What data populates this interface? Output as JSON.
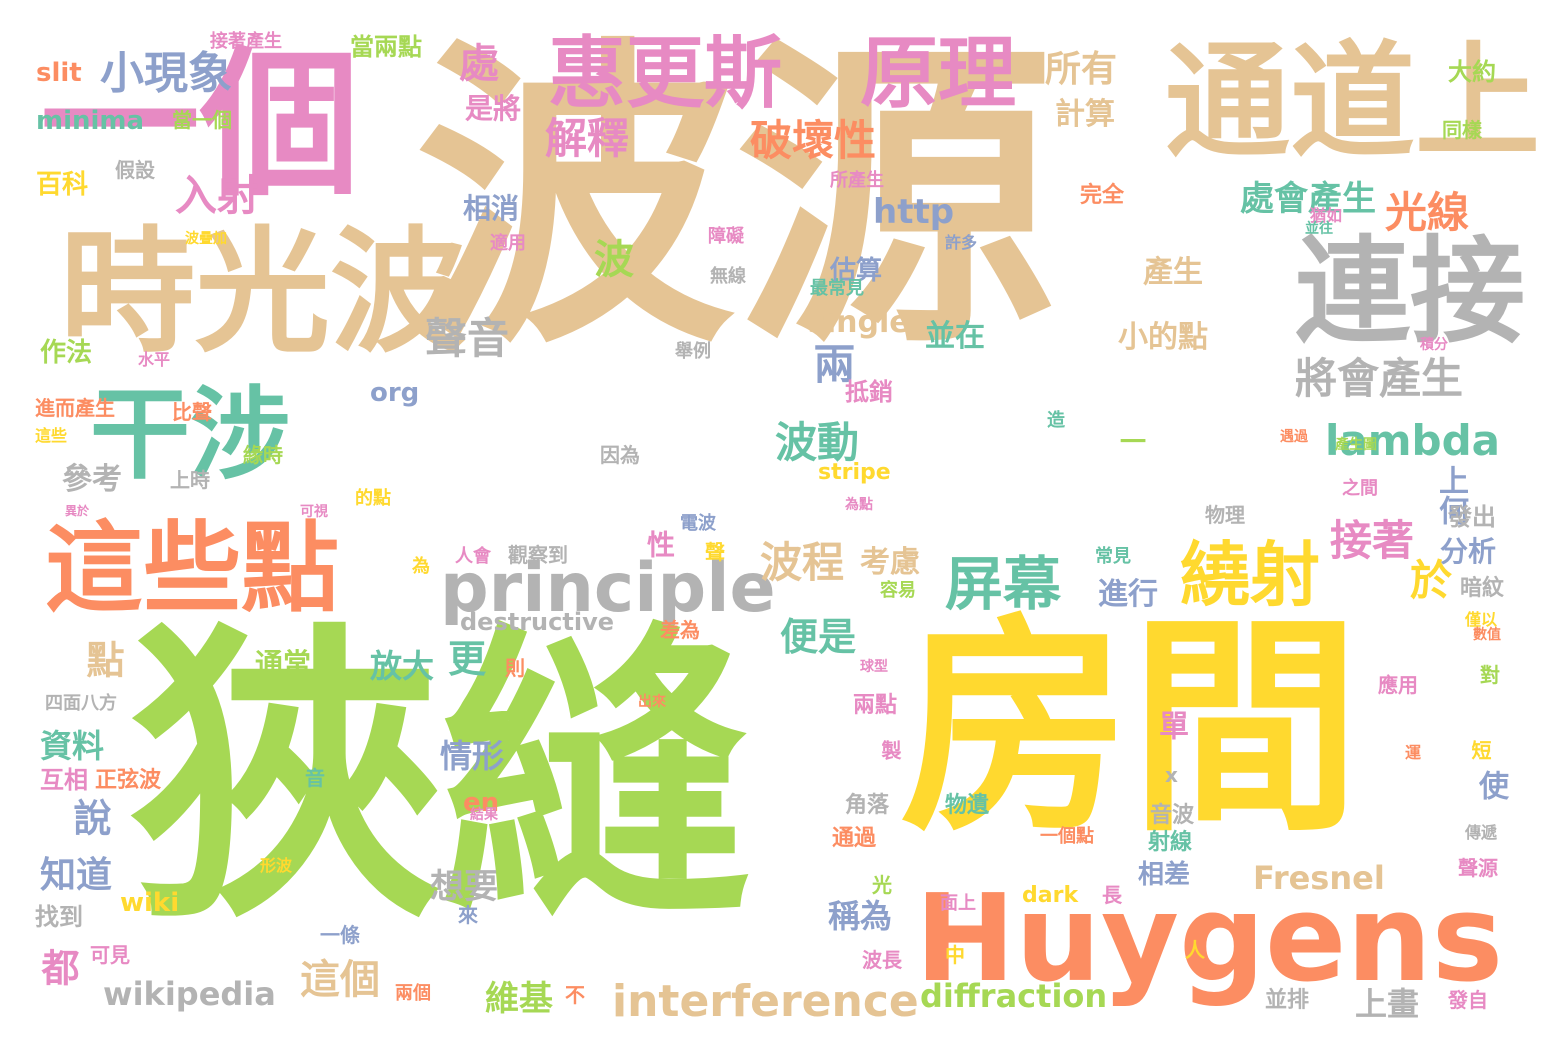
{
  "palette": {
    "tan": "#e5c494",
    "yellow": "#ffd92f",
    "green": "#a6d854",
    "pink": "#e78ac3",
    "orange": "#fc8d62",
    "teal": "#66c2a5",
    "blue": "#8da0cb",
    "gray": "#b3b3b3"
  },
  "words": [
    {
      "text": "波源",
      "color": "#e5c494"
    },
    {
      "text": "狹縫",
      "color": "#a6d854"
    },
    {
      "text": "房間",
      "color": "#ffd92f"
    },
    {
      "text": "一個",
      "color": "#e78ac3"
    },
    {
      "text": "時光波",
      "color": "#e5c494"
    },
    {
      "text": "通道上",
      "color": "#e5c494"
    },
    {
      "text": "連接",
      "color": "#b3b3b3"
    },
    {
      "text": "惠更斯",
      "color": "#e78ac3"
    },
    {
      "text": "原理",
      "color": "#e78ac3"
    },
    {
      "text": "這些點",
      "color": "#fc8d62"
    },
    {
      "text": "干涉",
      "color": "#66c2a5"
    },
    {
      "text": "Huygens",
      "color": "#fc8d62"
    },
    {
      "text": "principle",
      "color": "#b3b3b3"
    },
    {
      "text": "繞射",
      "color": "#ffd92f"
    },
    {
      "text": "屏幕",
      "color": "#66c2a5"
    },
    {
      "text": "interference",
      "color": "#e5c494"
    },
    {
      "text": "小現象",
      "color": "#8da0cb"
    },
    {
      "text": "入射",
      "color": "#e78ac3"
    },
    {
      "text": "破壞性",
      "color": "#fc8d62"
    },
    {
      "text": "解釋",
      "color": "#e78ac3"
    },
    {
      "text": "所有",
      "color": "#e5c494"
    },
    {
      "text": "光線",
      "color": "#fc8d62"
    },
    {
      "text": "將會產生",
      "color": "#b3b3b3"
    },
    {
      "text": "lambda",
      "color": "#66c2a5"
    },
    {
      "text": "聲音",
      "color": "#b3b3b3"
    },
    {
      "text": "波動",
      "color": "#66c2a5"
    },
    {
      "text": "波程",
      "color": "#e5c494"
    },
    {
      "text": "接著",
      "color": "#e78ac3"
    },
    {
      "text": "於",
      "color": "#ffd92f"
    },
    {
      "text": "兩",
      "color": "#8da0cb"
    },
    {
      "text": "波",
      "color": "#a6d854"
    },
    {
      "text": "處",
      "color": "#e78ac3"
    },
    {
      "text": "處會產生",
      "color": "#66c2a5"
    },
    {
      "text": "http",
      "color": "#8da0cb"
    },
    {
      "text": "便是",
      "color": "#66c2a5"
    },
    {
      "text": "更",
      "color": "#66c2a5"
    },
    {
      "text": "點",
      "color": "#e5c494"
    },
    {
      "text": "這個",
      "color": "#e5c494"
    },
    {
      "text": "都",
      "color": "#e78ac3"
    },
    {
      "text": "說",
      "color": "#8da0cb"
    },
    {
      "text": "知道",
      "color": "#8da0cb"
    },
    {
      "text": "wikipedia",
      "color": "#b3b3b3"
    },
    {
      "text": "diffraction",
      "color": "#a6d854"
    },
    {
      "text": "Fresnel",
      "color": "#e5c494"
    },
    {
      "text": "想要",
      "color": "#b3b3b3"
    },
    {
      "text": "維基",
      "color": "#a6d854"
    },
    {
      "text": "上畫",
      "color": "#b3b3b3"
    },
    {
      "text": "稱為",
      "color": "#8da0cb"
    },
    {
      "text": "情形",
      "color": "#8da0cb"
    },
    {
      "text": "放大",
      "color": "#66c2a5"
    },
    {
      "text": "資料",
      "color": "#66c2a5"
    },
    {
      "text": "參考",
      "color": "#b3b3b3"
    },
    {
      "text": "小的點",
      "color": "#e5c494"
    },
    {
      "text": "產生",
      "color": "#e5c494"
    },
    {
      "text": "single",
      "color": "#e5c494"
    },
    {
      "text": "並在",
      "color": "#66c2a5"
    },
    {
      "text": "考慮",
      "color": "#e5c494"
    },
    {
      "text": "進行",
      "color": "#8da0cb"
    },
    {
      "text": "分析",
      "color": "#8da0cb"
    },
    {
      "text": "上何",
      "color": "#8da0cb"
    },
    {
      "text": "使",
      "color": "#8da0cb"
    },
    {
      "text": "單",
      "color": "#e78ac3"
    },
    {
      "text": "計算",
      "color": "#e5c494"
    },
    {
      "text": "是將",
      "color": "#e78ac3"
    },
    {
      "text": "相消",
      "color": "#8da0cb"
    },
    {
      "text": "估算",
      "color": "#8da0cb"
    },
    {
      "text": "相差",
      "color": "#8da0cb"
    },
    {
      "text": "通常",
      "color": "#a6d854"
    },
    {
      "text": "wiki",
      "color": "#ffd92f"
    },
    {
      "text": "en",
      "color": "#fc8d62"
    },
    {
      "text": "org",
      "color": "#8da0cb"
    },
    {
      "text": "作法",
      "color": "#a6d854"
    },
    {
      "text": "百科",
      "color": "#ffd92f"
    },
    {
      "text": "minima",
      "color": "#66c2a5"
    },
    {
      "text": "slit",
      "color": "#fc8d62"
    },
    {
      "text": "當兩點",
      "color": "#a6d854"
    },
    {
      "text": "大約",
      "color": "#a6d854"
    },
    {
      "text": "同樣",
      "color": "#a6d854"
    },
    {
      "text": "抵銷",
      "color": "#e78ac3"
    },
    {
      "text": "destructive",
      "color": "#b3b3b3"
    },
    {
      "text": "stripe",
      "color": "#ffd92f"
    },
    {
      "text": "性",
      "color": "#e78ac3"
    },
    {
      "text": "互相",
      "color": "#e78ac3"
    },
    {
      "text": "找到",
      "color": "#b3b3b3"
    },
    {
      "text": "一",
      "color": "#a6d854"
    },
    {
      "text": "完全",
      "color": "#fc8d62"
    },
    {
      "text": "發出",
      "color": "#b3b3b3"
    },
    {
      "text": "暗紋",
      "color": "#b3b3b3"
    },
    {
      "text": "通過",
      "color": "#fc8d62"
    },
    {
      "text": "dark",
      "color": "#ffd92f"
    },
    {
      "text": "音波",
      "color": "#b3b3b3"
    },
    {
      "text": "射線",
      "color": "#66c2a5"
    },
    {
      "text": "兩點",
      "color": "#e78ac3"
    },
    {
      "text": "角落",
      "color": "#b3b3b3"
    },
    {
      "text": "物遺",
      "color": "#66c2a5"
    },
    {
      "text": "應用",
      "color": "#e78ac3"
    },
    {
      "text": "接著產生",
      "color": "#e78ac3"
    },
    {
      "text": "當一個",
      "color": "#a6d854"
    },
    {
      "text": "假設",
      "color": "#b3b3b3"
    },
    {
      "text": "所產生",
      "color": "#e78ac3"
    },
    {
      "text": "猶如",
      "color": "#e78ac3"
    },
    {
      "text": "並往",
      "color": "#66c2a5"
    },
    {
      "text": "障礙",
      "color": "#e78ac3"
    },
    {
      "text": "許多",
      "color": "#8da0cb"
    },
    {
      "text": "無線",
      "color": "#b3b3b3"
    },
    {
      "text": "最常見",
      "color": "#66c2a5"
    },
    {
      "text": "適用",
      "color": "#e78ac3"
    },
    {
      "text": "波疊加",
      "color": "#ffd92f"
    },
    {
      "text": "水平",
      "color": "#e78ac3"
    },
    {
      "text": "舉例",
      "color": "#b3b3b3"
    },
    {
      "text": "積分",
      "color": "#e78ac3"
    },
    {
      "text": "進而產生",
      "color": "#fc8d62"
    },
    {
      "text": "比聲",
      "color": "#fc8d62"
    },
    {
      "text": "這些",
      "color": "#ffd92f"
    },
    {
      "text": "緣時",
      "color": "#a6d854"
    },
    {
      "text": "上時",
      "color": "#b3b3b3"
    },
    {
      "text": "因為",
      "color": "#b3b3b3"
    },
    {
      "text": "造",
      "color": "#66c2a5"
    },
    {
      "text": "產生圖",
      "color": "#a6d854"
    },
    {
      "text": "遇過",
      "color": "#fc8d62"
    },
    {
      "text": "的點",
      "color": "#ffd92f"
    },
    {
      "text": "可視",
      "color": "#e78ac3"
    },
    {
      "text": "異於",
      "color": "#e78ac3"
    },
    {
      "text": "為點",
      "color": "#e78ac3"
    },
    {
      "text": "之間",
      "color": "#e78ac3"
    },
    {
      "text": "物理",
      "color": "#b3b3b3"
    },
    {
      "text": "電波",
      "color": "#8da0cb"
    },
    {
      "text": "聲",
      "color": "#ffd92f"
    },
    {
      "text": "常見",
      "color": "#66c2a5"
    },
    {
      "text": "人會",
      "color": "#e78ac3"
    },
    {
      "text": "觀察到",
      "color": "#b3b3b3"
    },
    {
      "text": "為",
      "color": "#ffd92f"
    },
    {
      "text": "容易",
      "color": "#a6d854"
    },
    {
      "text": "僅以",
      "color": "#ffd92f"
    },
    {
      "text": "差為",
      "color": "#fc8d62"
    },
    {
      "text": "則",
      "color": "#fc8d62"
    },
    {
      "text": "數值",
      "color": "#fc8d62"
    },
    {
      "text": "四面八方",
      "color": "#b3b3b3"
    },
    {
      "text": "出來",
      "color": "#fc8d62"
    },
    {
      "text": "球型",
      "color": "#e78ac3"
    },
    {
      "text": "對",
      "color": "#a6d854"
    },
    {
      "text": "製",
      "color": "#e78ac3"
    },
    {
      "text": "正弦波",
      "color": "#fc8d62"
    },
    {
      "text": "音",
      "color": "#66c2a5"
    },
    {
      "text": "運",
      "color": "#fc8d62"
    },
    {
      "text": "短",
      "color": "#ffd92f"
    },
    {
      "text": "x",
      "color": "#b3b3b3"
    },
    {
      "text": "結果",
      "color": "#e78ac3"
    },
    {
      "text": "一個點",
      "color": "#fc8d62"
    },
    {
      "text": "傳遞",
      "color": "#b3b3b3"
    },
    {
      "text": "聲源",
      "color": "#e78ac3"
    },
    {
      "text": "形波",
      "color": "#ffd92f"
    },
    {
      "text": "光",
      "color": "#a6d854"
    },
    {
      "text": "面上",
      "color": "#e78ac3"
    },
    {
      "text": "長",
      "color": "#e78ac3"
    },
    {
      "text": "來",
      "color": "#8da0cb"
    },
    {
      "text": "一條",
      "color": "#8da0cb"
    },
    {
      "text": "可見",
      "color": "#e78ac3"
    },
    {
      "text": "兩個",
      "color": "#fc8d62"
    },
    {
      "text": "波長",
      "color": "#e78ac3"
    },
    {
      "text": "中",
      "color": "#ffd92f"
    },
    {
      "text": "人",
      "color": "#ffd92f"
    },
    {
      "text": "不",
      "color": "#fc8d62"
    },
    {
      "text": "並排",
      "color": "#b3b3b3"
    },
    {
      "text": "發自",
      "color": "#e78ac3"
    }
  ]
}
